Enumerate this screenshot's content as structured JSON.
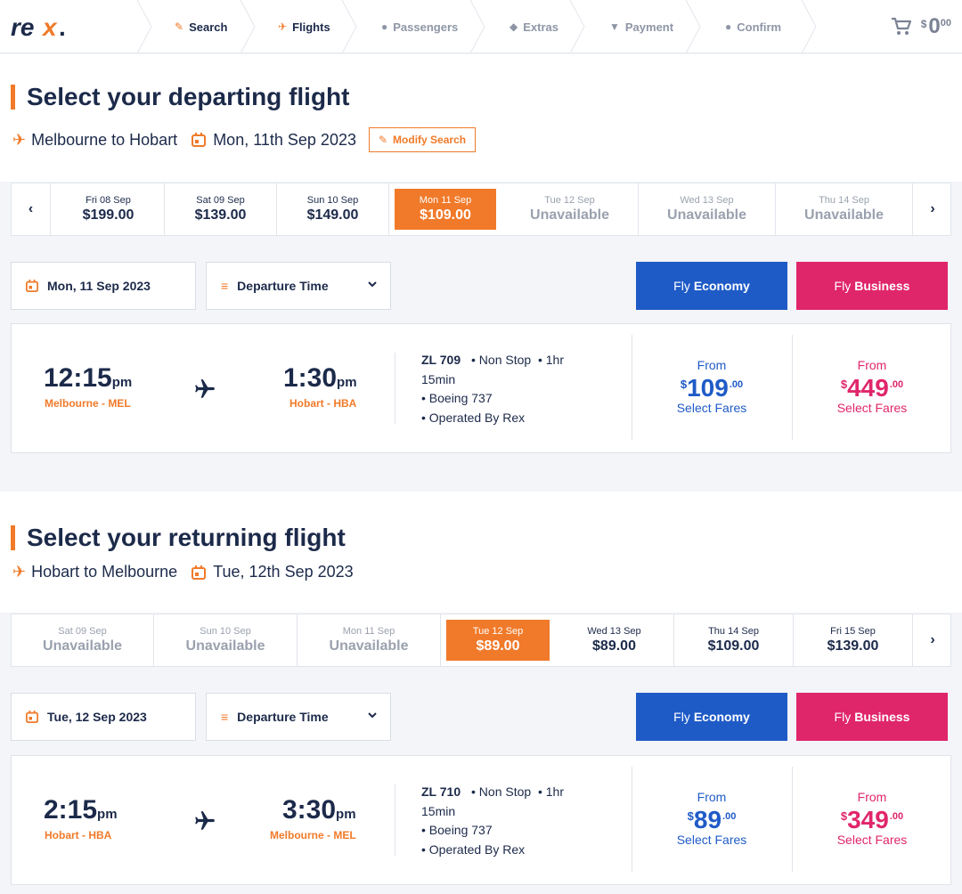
{
  "header": {
    "logo_text": "rex.",
    "steps": [
      {
        "label": "Search",
        "icon": "pencil-icon"
      },
      {
        "label": "Flights",
        "icon": "plane-icon"
      },
      {
        "label": "Passengers",
        "icon": "person-icon"
      },
      {
        "label": "Extras",
        "icon": "tag-icon"
      },
      {
        "label": "Payment",
        "icon": "cart-icon"
      },
      {
        "label": "Confirm",
        "icon": "check-circle-icon"
      }
    ],
    "cart": {
      "currency": "$",
      "whole": "0",
      "cents": "00"
    }
  },
  "departing": {
    "title": "Select your departing flight",
    "route": "Melbourne to Hobart",
    "date": "Mon, 11th Sep 2023",
    "modify_label": "Modify Search",
    "dates": [
      {
        "label": "Fri 08 Sep",
        "price": "$199.00"
      },
      {
        "label": "Sat 09 Sep",
        "price": "$139.00"
      },
      {
        "label": "Sun 10 Sep",
        "price": "$149.00"
      },
      {
        "label": "Mon 11 Sep",
        "price": "$109.00"
      },
      {
        "label": "Tue 12 Sep",
        "price": "Unavailable"
      },
      {
        "label": "Wed 13 Sep",
        "price": "Unavailable"
      },
      {
        "label": "Thu 14 Sep",
        "price": "Unavailable"
      }
    ],
    "filter_date": "Mon, 11 Sep 2023",
    "sort_label": "Departure Time",
    "economy_btn": {
      "pre": "Fly",
      "main": "Economy"
    },
    "business_btn": {
      "pre": "Fly",
      "main": "Business"
    },
    "flight": {
      "dep_time": "12:15",
      "dep_ampm": "pm",
      "dep_airport": "Melbourne - MEL",
      "arr_time": "1:30",
      "arr_ampm": "pm",
      "arr_airport": "Hobart - HBA",
      "number": "ZL 709",
      "stops": "• Non Stop",
      "duration_a": "• 1hr",
      "duration_b": "15min",
      "aircraft": "• Boeing 737",
      "operator": "• Operated By Rex",
      "eco": {
        "from": "From",
        "currency": "$",
        "whole": "109",
        "cents": ".00",
        "select": "Select Fares"
      },
      "bus": {
        "from": "From",
        "currency": "$",
        "whole": "449",
        "cents": ".00",
        "select": "Select Fares"
      }
    }
  },
  "returning": {
    "title": "Select your returning flight",
    "route": "Hobart to Melbourne",
    "date": "Tue, 12th Sep 2023",
    "dates": [
      {
        "label": "Sat 09 Sep",
        "price": "Unavailable"
      },
      {
        "label": "Sun 10 Sep",
        "price": "Unavailable"
      },
      {
        "label": "Mon 11 Sep",
        "price": "Unavailable"
      },
      {
        "label": "Tue 12 Sep",
        "price": "$89.00"
      },
      {
        "label": "Wed 13 Sep",
        "price": "$89.00"
      },
      {
        "label": "Thu 14 Sep",
        "price": "$109.00"
      },
      {
        "label": "Fri 15 Sep",
        "price": "$139.00"
      }
    ],
    "filter_date": "Tue, 12 Sep 2023",
    "sort_label": "Departure Time",
    "economy_btn": {
      "pre": "Fly",
      "main": "Economy"
    },
    "business_btn": {
      "pre": "Fly",
      "main": "Business"
    },
    "flight": {
      "dep_time": "2:15",
      "dep_ampm": "pm",
      "dep_airport": "Hobart - HBA",
      "arr_time": "3:30",
      "arr_ampm": "pm",
      "arr_airport": "Melbourne - MEL",
      "number": "ZL 710",
      "stops": "• Non Stop",
      "duration_a": "• 1hr",
      "duration_b": "15min",
      "aircraft": "• Boeing 737",
      "operator": "• Operated By Rex",
      "eco": {
        "from": "From",
        "currency": "$",
        "whole": "89",
        "cents": ".00",
        "select": "Select Fares"
      },
      "bus": {
        "from": "From",
        "currency": "$",
        "whole": "349",
        "cents": ".00",
        "select": "Select Fares"
      }
    }
  },
  "colors": {
    "accent": "#f07a2a",
    "economy": "#1f5bc7",
    "business": "#e0266b",
    "text": "#1c2a4a"
  }
}
